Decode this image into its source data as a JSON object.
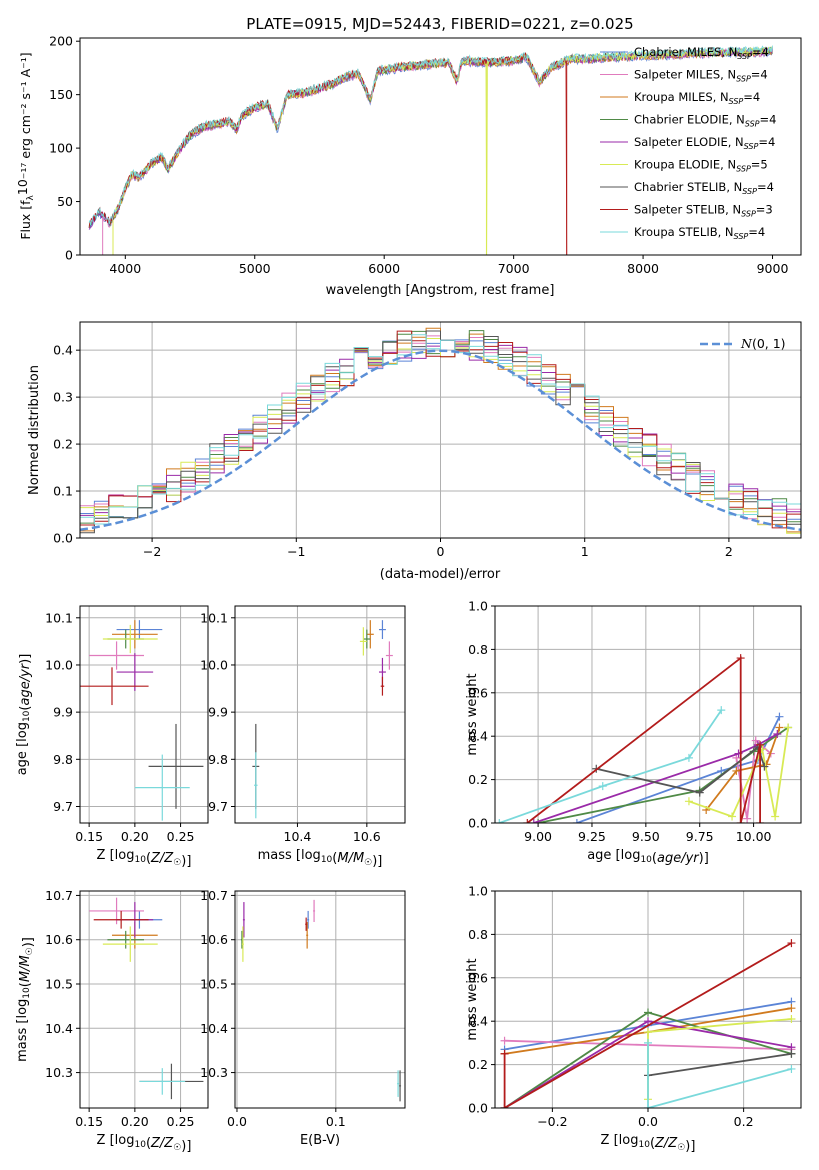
{
  "figure": {
    "title": "PLATE=0915, MJD=52443, FIBERID=0221, z=0.025"
  },
  "colors": {
    "Chabrier MILES": "#5b84d6",
    "Salpeter MILES": "#e07bbd",
    "Kroupa MILES": "#d07a1e",
    "Chabrier ELODIE": "#4f8a46",
    "Salpeter ELODIE": "#9a2aa8",
    "Kroupa ELODIE": "#d8ea55",
    "Chabrier STELIB": "#555555",
    "Salpeter STELIB": "#b31c1c",
    "Kroupa STELIB": "#7ad9db",
    "gauss": "#5b8fd6",
    "grid": "#b0b0b0"
  },
  "chart_data": [
    {
      "id": "spectrum",
      "type": "line",
      "xlabel": "wavelength [Angstrom, rest frame]",
      "ylabel": "Flux [fλ10⁻¹⁷ erg cm⁻² s⁻¹ A⁻¹]",
      "xlim": [
        3650,
        9220
      ],
      "ylim": [
        0,
        203
      ],
      "xticks": [
        4000,
        5000,
        6000,
        7000,
        8000,
        9000
      ],
      "yticks": [
        0,
        50,
        100,
        150,
        200
      ],
      "grid": false,
      "legend_position": "top-right",
      "legend": [
        {
          "label": "Chabrier MILES, N_SSP=4",
          "text": "Chabrier MILES, N",
          "sub": "SSP",
          "tail": "=4"
        },
        {
          "label": "Salpeter MILES, N_SSP=4",
          "text": "Salpeter MILES, N",
          "sub": "SSP",
          "tail": "=4"
        },
        {
          "label": "Kroupa MILES, N_SSP=4",
          "text": "Kroupa MILES, N",
          "sub": "SSP",
          "tail": "=4"
        },
        {
          "label": "Chabrier ELODIE, N_SSP=4",
          "text": "Chabrier ELODIE, N",
          "sub": "SSP",
          "tail": "=4"
        },
        {
          "label": "Salpeter ELODIE, N_SSP=4",
          "text": "Salpeter ELODIE, N",
          "sub": "SSP",
          "tail": "=4"
        },
        {
          "label": "Kroupa ELODIE, N_SSP=5",
          "text": "Kroupa ELODIE, N",
          "sub": "SSP",
          "tail": "=5"
        },
        {
          "label": "Chabrier STELIB, N_SSP=4",
          "text": "Chabrier STELIB, N",
          "sub": "SSP",
          "tail": "=4"
        },
        {
          "label": "Salpeter STELIB, N_SSP=3",
          "text": "Salpeter STELIB, N",
          "sub": "SSP",
          "tail": "=3"
        },
        {
          "label": "Kroupa STELIB, N_SSP=4",
          "text": "Kroupa STELIB, N",
          "sub": "SSP",
          "tail": "=4"
        }
      ],
      "continuum": [
        [
          3720,
          27
        ],
        [
          3800,
          40
        ],
        [
          3880,
          30
        ],
        [
          3950,
          45
        ],
        [
          4000,
          62
        ],
        [
          4050,
          75
        ],
        [
          4100,
          73
        ],
        [
          4150,
          78
        ],
        [
          4200,
          85
        ],
        [
          4280,
          92
        ],
        [
          4330,
          80
        ],
        [
          4400,
          95
        ],
        [
          4500,
          112
        ],
        [
          4600,
          120
        ],
        [
          4700,
          122
        ],
        [
          4800,
          125
        ],
        [
          4860,
          118
        ],
        [
          4900,
          130
        ],
        [
          5000,
          138
        ],
        [
          5100,
          142
        ],
        [
          5175,
          118
        ],
        [
          5250,
          150
        ],
        [
          5400,
          152
        ],
        [
          5500,
          156
        ],
        [
          5600,
          160
        ],
        [
          5700,
          166
        ],
        [
          5800,
          170
        ],
        [
          5893,
          145
        ],
        [
          5950,
          172
        ],
        [
          6100,
          175
        ],
        [
          6300,
          178
        ],
        [
          6500,
          180
        ],
        [
          6563,
          162
        ],
        [
          6600,
          182
        ],
        [
          6800,
          180
        ],
        [
          7000,
          182
        ],
        [
          7100,
          185
        ],
        [
          7200,
          162
        ],
        [
          7300,
          176
        ],
        [
          7450,
          184
        ],
        [
          7550,
          183
        ],
        [
          7700,
          185
        ],
        [
          7900,
          186
        ],
        [
          8100,
          187
        ],
        [
          8300,
          188
        ],
        [
          8500,
          189
        ],
        [
          8700,
          190
        ],
        [
          8900,
          190
        ],
        [
          9000,
          191
        ]
      ],
      "truncations": [
        {
          "model": "Salpeter MILES",
          "x_end": 3825
        },
        {
          "model": "Kroupa MILES",
          "x_end": 3905
        },
        {
          "model": "Kroupa ELODIE",
          "x_end": 3905
        },
        {
          "model": "Kroupa ELODIE",
          "x_end": 6790
        },
        {
          "model": "Salpeter STELIB",
          "x_end": 7410
        }
      ]
    },
    {
      "id": "residuals",
      "type": "histogram",
      "xlabel": "(data-model)/error",
      "ylabel": "Normed distribution",
      "xlim": [
        -2.5,
        2.5
      ],
      "ylim": [
        0,
        0.46
      ],
      "xticks": [
        -2,
        -1,
        0,
        1,
        2
      ],
      "yticks": [
        0.0,
        0.1,
        0.2,
        0.3,
        0.4
      ],
      "grid": true,
      "legend": [
        {
          "label": "N(0,1)"
        }
      ],
      "legend_position": "top-right",
      "gaussian": {
        "mean": 0,
        "sigma": 1
      }
    },
    {
      "id": "age_vs_Z",
      "type": "errorbar",
      "xlabel": "Z [log10(Z/Z☉)]",
      "ylabel": "age [log10(age/yr)]",
      "xlim": [
        0.14,
        0.28
      ],
      "ylim": [
        9.665,
        10.125
      ],
      "xticks": [
        0.15,
        0.2,
        0.25
      ],
      "yticks": [
        9.7,
        9.8,
        9.9,
        10.0,
        10.1
      ],
      "grid": true,
      "points": [
        {
          "model": "Chabrier MILES",
          "x": 0.205,
          "xerr": 0.025,
          "y": 10.075,
          "yerr": 0.02
        },
        {
          "model": "Salpeter MILES",
          "x": 0.18,
          "xerr": 0.03,
          "y": 10.02,
          "yerr": 0.03
        },
        {
          "model": "Kroupa MILES",
          "x": 0.2,
          "xerr": 0.025,
          "y": 10.065,
          "yerr": 0.03
        },
        {
          "model": "Chabrier ELODIE",
          "x": 0.19,
          "xerr": 0.02,
          "y": 10.055,
          "yerr": 0.02
        },
        {
          "model": "Salpeter ELODIE",
          "x": 0.2,
          "xerr": 0.02,
          "y": 9.985,
          "yerr": 0.04
        },
        {
          "model": "Kroupa ELODIE",
          "x": 0.195,
          "xerr": 0.03,
          "y": 10.055,
          "yerr": 0.03
        },
        {
          "model": "Chabrier STELIB",
          "x": 0.245,
          "xerr": 0.03,
          "y": 9.785,
          "yerr": 0.09
        },
        {
          "model": "Salpeter STELIB",
          "x": 0.175,
          "xerr": 0.04,
          "y": 9.955,
          "yerr": 0.04
        },
        {
          "model": "Kroupa STELIB",
          "x": 0.23,
          "xerr": 0.03,
          "y": 9.74,
          "yerr": 0.07
        }
      ]
    },
    {
      "id": "age_vs_mass",
      "type": "errorbar",
      "xlabel": "mass [log10(M/M☉)]",
      "ylabel": "",
      "xlim": [
        10.22,
        10.71
      ],
      "ylim": [
        9.665,
        10.125
      ],
      "xticks": [
        10.4,
        10.6
      ],
      "yticks": [
        9.7,
        9.8,
        9.9,
        10.0,
        10.1
      ],
      "grid": true,
      "points": [
        {
          "model": "Chabrier MILES",
          "x": 10.645,
          "xerr": 0.01,
          "y": 10.075,
          "yerr": 0.02
        },
        {
          "model": "Salpeter MILES",
          "x": 10.665,
          "xerr": 0.01,
          "y": 10.02,
          "yerr": 0.03
        },
        {
          "model": "Kroupa MILES",
          "x": 10.61,
          "xerr": 0.01,
          "y": 10.065,
          "yerr": 0.03
        },
        {
          "model": "Chabrier ELODIE",
          "x": 10.6,
          "xerr": 0.01,
          "y": 10.055,
          "yerr": 0.02
        },
        {
          "model": "Salpeter ELODIE",
          "x": 10.645,
          "xerr": 0.01,
          "y": 9.985,
          "yerr": 0.03
        },
        {
          "model": "Kroupa ELODIE",
          "x": 10.59,
          "xerr": 0.01,
          "y": 10.05,
          "yerr": 0.03
        },
        {
          "model": "Chabrier STELIB",
          "x": 10.28,
          "xerr": 0.01,
          "y": 9.785,
          "yerr": 0.09
        },
        {
          "model": "Salpeter STELIB",
          "x": 10.645,
          "xerr": 0.005,
          "y": 9.955,
          "yerr": 0.02
        },
        {
          "model": "Kroupa STELIB",
          "x": 10.28,
          "xerr": 0.005,
          "y": 9.745,
          "yerr": 0.07
        }
      ]
    },
    {
      "id": "weight_vs_age",
      "type": "line",
      "xlabel": "age [log10(age/yr)]",
      "ylabel": "mass weight",
      "xlim": [
        8.8,
        10.22
      ],
      "ylim": [
        0,
        1
      ],
      "xticks": [
        9.0,
        9.25,
        9.5,
        9.75,
        10.0
      ],
      "yticks": [
        0.0,
        0.2,
        0.4,
        0.6,
        0.8,
        1.0
      ],
      "grid": true,
      "series": [
        {
          "model": "Chabrier MILES",
          "x": [
            9.18,
            9.85,
            10.02,
            10.12
          ],
          "y": [
            0.0,
            0.24,
            0.29,
            0.49
          ]
        },
        {
          "model": "Salpeter MILES",
          "x": [
            9.92,
            9.97,
            10.01,
            10.08
          ],
          "y": [
            0.3,
            0.02,
            0.38,
            0.32
          ]
        },
        {
          "model": "Kroupa MILES",
          "x": [
            9.78,
            9.92,
            10.06,
            10.12
          ],
          "y": [
            0.06,
            0.24,
            0.27,
            0.44
          ]
        },
        {
          "model": "Chabrier ELODIE",
          "x": [
            9.0,
            9.75,
            10.0,
            10.16
          ],
          "y": [
            0.0,
            0.15,
            0.33,
            0.44
          ]
        },
        {
          "model": "Salpeter ELODIE",
          "x": [
            8.98,
            9.93,
            10.02,
            10.11
          ],
          "y": [
            0.0,
            0.32,
            0.36,
            0.41
          ]
        },
        {
          "model": "Kroupa ELODIE",
          "x": [
            9.7,
            9.9,
            10.04,
            10.1,
            10.16
          ],
          "y": [
            0.1,
            0.03,
            0.34,
            0.03,
            0.44
          ]
        },
        {
          "model": "Chabrier STELIB",
          "x": [
            9.27,
            9.75,
            10.02,
            10.05
          ],
          "y": [
            0.25,
            0.14,
            0.35,
            0.26
          ]
        },
        {
          "model": "Salpeter STELIB",
          "x": [
            8.95,
            9.94,
            9.94,
            10.03,
            10.03
          ],
          "y": [
            0.0,
            0.76,
            0.0,
            0.36,
            0.0
          ]
        },
        {
          "model": "Kroupa STELIB",
          "x": [
            8.82,
            9.3,
            9.7,
            9.85
          ],
          "y": [
            0.0,
            0.17,
            0.3,
            0.52
          ]
        }
      ]
    },
    {
      "id": "mass_vs_Z",
      "type": "errorbar",
      "xlabel": "Z [log10(Z/Z☉)]",
      "ylabel": "mass [log10(M/M☉)]",
      "xlim": [
        0.14,
        0.28
      ],
      "ylim": [
        10.22,
        10.71
      ],
      "xticks": [
        0.15,
        0.2,
        0.25
      ],
      "yticks": [
        10.3,
        10.4,
        10.5,
        10.6,
        10.7
      ],
      "grid": true,
      "points": [
        {
          "model": "Chabrier MILES",
          "x": 0.205,
          "xerr": 0.025,
          "y": 10.645,
          "yerr": 0.02
        },
        {
          "model": "Salpeter MILES",
          "x": 0.18,
          "xerr": 0.03,
          "y": 10.665,
          "yerr": 0.03
        },
        {
          "model": "Kroupa MILES",
          "x": 0.2,
          "xerr": 0.025,
          "y": 10.61,
          "yerr": 0.03
        },
        {
          "model": "Chabrier ELODIE",
          "x": 0.19,
          "xerr": 0.02,
          "y": 10.6,
          "yerr": 0.02
        },
        {
          "model": "Salpeter ELODIE",
          "x": 0.2,
          "xerr": 0.02,
          "y": 10.645,
          "yerr": 0.04
        },
        {
          "model": "Kroupa ELODIE",
          "x": 0.195,
          "xerr": 0.03,
          "y": 10.59,
          "yerr": 0.04
        },
        {
          "model": "Chabrier STELIB",
          "x": 0.24,
          "xerr": 0.035,
          "y": 10.28,
          "yerr": 0.04
        },
        {
          "model": "Salpeter STELIB",
          "x": 0.185,
          "xerr": 0.03,
          "y": 10.645,
          "yerr": 0.02
        },
        {
          "model": "Kroupa STELIB",
          "x": 0.23,
          "xerr": 0.025,
          "y": 10.28,
          "yerr": 0.03
        }
      ]
    },
    {
      "id": "mass_vs_ebv",
      "type": "errorbar",
      "xlabel": "E(B-V)",
      "ylabel": "",
      "xlim": [
        -0.002,
        0.17
      ],
      "ylim": [
        10.22,
        10.71
      ],
      "xticks": [
        0.0,
        0.1
      ],
      "yticks": [
        10.3,
        10.4,
        10.5,
        10.6,
        10.7
      ],
      "grid": true,
      "points": [
        {
          "model": "Chabrier MILES",
          "x": 0.072,
          "xerr": 0.001,
          "y": 10.645,
          "yerr": 0.02
        },
        {
          "model": "Salpeter MILES",
          "x": 0.078,
          "xerr": 0.001,
          "y": 10.665,
          "yerr": 0.025
        },
        {
          "model": "Kroupa MILES",
          "x": 0.071,
          "xerr": 0.001,
          "y": 10.61,
          "yerr": 0.03
        },
        {
          "model": "Chabrier ELODIE",
          "x": 0.005,
          "xerr": 0.001,
          "y": 10.6,
          "yerr": 0.02
        },
        {
          "model": "Salpeter ELODIE",
          "x": 0.007,
          "xerr": 0.001,
          "y": 10.645,
          "yerr": 0.04
        },
        {
          "model": "Kroupa ELODIE",
          "x": 0.006,
          "xerr": 0.001,
          "y": 10.59,
          "yerr": 0.04
        },
        {
          "model": "Chabrier STELIB",
          "x": 0.165,
          "xerr": 0.001,
          "y": 10.27,
          "yerr": 0.035
        },
        {
          "model": "Salpeter STELIB",
          "x": 0.07,
          "xerr": 0.001,
          "y": 10.635,
          "yerr": 0.015
        },
        {
          "model": "Kroupa STELIB",
          "x": 0.163,
          "xerr": 0.001,
          "y": 10.275,
          "yerr": 0.03
        }
      ]
    },
    {
      "id": "weight_vs_Z",
      "type": "line",
      "xlabel": "Z [log10(Z/Z☉)]",
      "ylabel": "mass weight",
      "xlim": [
        -0.32,
        0.32
      ],
      "ylim": [
        0,
        1
      ],
      "xticks": [
        -0.2,
        0.0,
        0.2
      ],
      "yticks": [
        0.0,
        0.2,
        0.4,
        0.6,
        0.8,
        1.0
      ],
      "grid": true,
      "series": [
        {
          "model": "Chabrier MILES",
          "x": [
            -0.3,
            0.0,
            0.3
          ],
          "y": [
            0.27,
            0.38,
            0.49
          ]
        },
        {
          "model": "Salpeter MILES",
          "x": [
            -0.3,
            0.0,
            0.3
          ],
          "y": [
            0.31,
            0.29,
            0.27
          ]
        },
        {
          "model": "Kroupa MILES",
          "x": [
            -0.3,
            0.0,
            0.3
          ],
          "y": [
            0.25,
            0.35,
            0.46
          ]
        },
        {
          "model": "Chabrier ELODIE",
          "x": [
            -0.3,
            0.0,
            0.3
          ],
          "y": [
            0.0,
            0.44,
            0.25
          ]
        },
        {
          "model": "Salpeter ELODIE",
          "x": [
            -0.3,
            0.0,
            0.3
          ],
          "y": [
            0.0,
            0.4,
            0.28
          ]
        },
        {
          "model": "Kroupa ELODIE",
          "x": [
            0.0,
            0.0,
            0.3
          ],
          "y": [
            0.04,
            0.35,
            0.41
          ]
        },
        {
          "model": "Chabrier STELIB",
          "x": [
            0.0,
            0.0,
            0.3
          ],
          "y": [
            0.15,
            0.15,
            0.25
          ]
        },
        {
          "model": "Salpeter STELIB",
          "x": [
            -0.3,
            -0.3,
            0.3
          ],
          "y": [
            0.25,
            0.0,
            0.76
          ]
        },
        {
          "model": "Kroupa STELIB",
          "x": [
            0.0,
            0.0,
            0.3
          ],
          "y": [
            0.3,
            0.0,
            0.18
          ]
        }
      ]
    }
  ]
}
